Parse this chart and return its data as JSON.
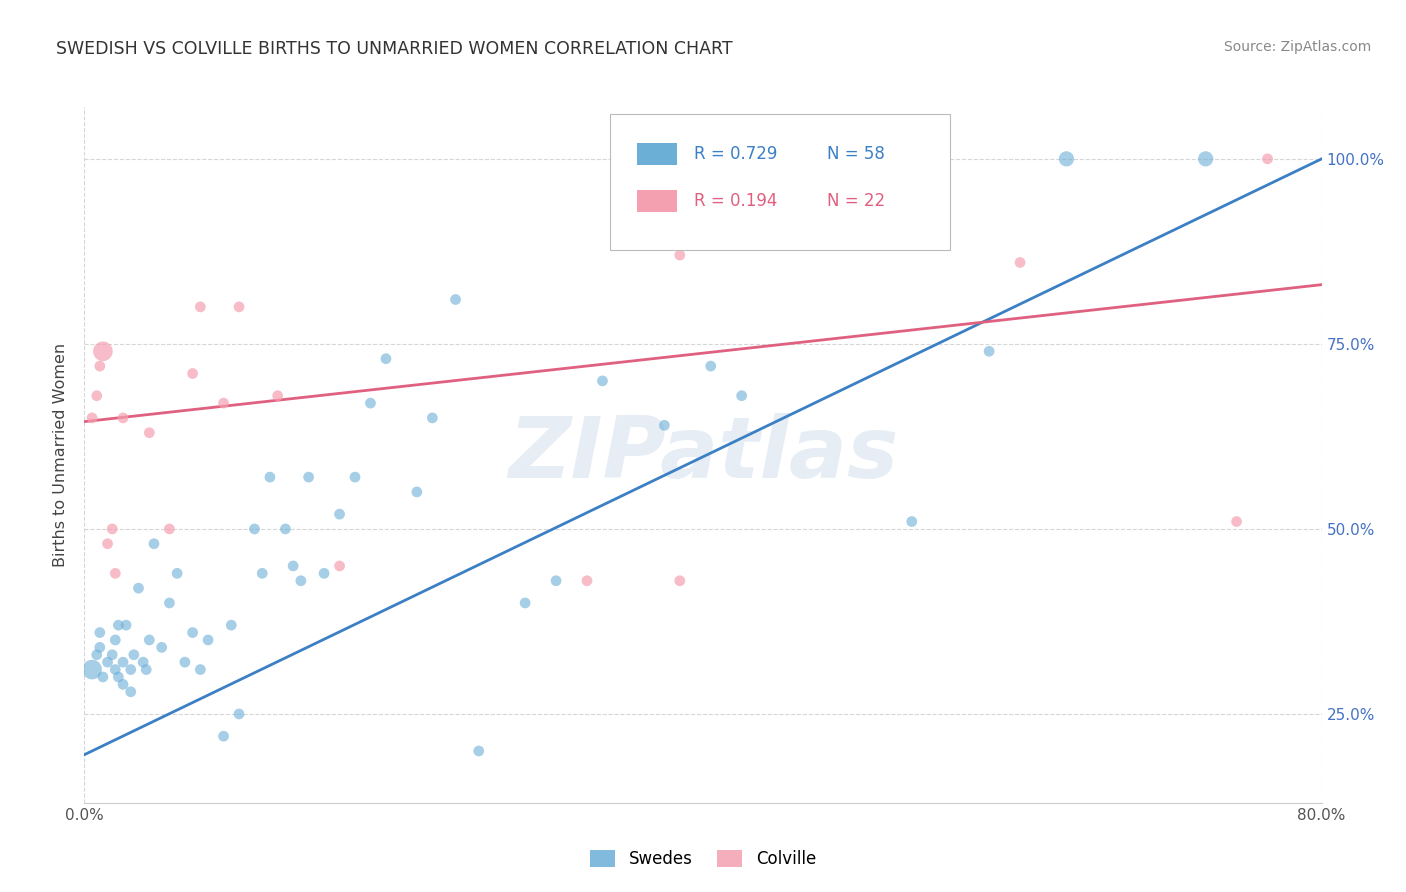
{
  "title": "SWEDISH VS COLVILLE BIRTHS TO UNMARRIED WOMEN CORRELATION CHART",
  "source": "Source: ZipAtlas.com",
  "ylabel": "Births to Unmarried Women",
  "watermark": "ZIPatlas",
  "xlim": [
    0.0,
    0.8
  ],
  "ylim": [
    0.13,
    1.07
  ],
  "ytick_positions": [
    0.25,
    0.5,
    0.75,
    1.0
  ],
  "ytick_labels": [
    "25.0%",
    "50.0%",
    "75.0%",
    "100.0%"
  ],
  "legend1_label": "R = 0.729",
  "legend1_n": "N = 58",
  "legend2_label": "R = 0.194",
  "legend2_n": "N = 22",
  "swedes_color": "#6baed6",
  "colville_color": "#f4a0b0",
  "blue_line_color": "#3b7fc4",
  "pink_line_color": "#e06080",
  "swedes_data_x": [
    0.005,
    0.008,
    0.01,
    0.01,
    0.012,
    0.015,
    0.018,
    0.02,
    0.02,
    0.022,
    0.022,
    0.025,
    0.025,
    0.027,
    0.03,
    0.03,
    0.032,
    0.035,
    0.038,
    0.04,
    0.042,
    0.045,
    0.05,
    0.055,
    0.06,
    0.065,
    0.07,
    0.075,
    0.08,
    0.09,
    0.095,
    0.1,
    0.11,
    0.115,
    0.12,
    0.13,
    0.135,
    0.14,
    0.145,
    0.155,
    0.165,
    0.175,
    0.185,
    0.195,
    0.215,
    0.225,
    0.24,
    0.255,
    0.285,
    0.305,
    0.335,
    0.375,
    0.405,
    0.425,
    0.535,
    0.585,
    0.635,
    0.725
  ],
  "swedes_data_y": [
    0.31,
    0.33,
    0.34,
    0.36,
    0.3,
    0.32,
    0.33,
    0.31,
    0.35,
    0.3,
    0.37,
    0.29,
    0.32,
    0.37,
    0.28,
    0.31,
    0.33,
    0.42,
    0.32,
    0.31,
    0.35,
    0.48,
    0.34,
    0.4,
    0.44,
    0.32,
    0.36,
    0.31,
    0.35,
    0.22,
    0.37,
    0.25,
    0.5,
    0.44,
    0.57,
    0.5,
    0.45,
    0.43,
    0.57,
    0.44,
    0.52,
    0.57,
    0.67,
    0.73,
    0.55,
    0.65,
    0.81,
    0.2,
    0.4,
    0.43,
    0.7,
    0.64,
    0.72,
    0.68,
    0.51,
    0.74,
    1.0,
    1.0
  ],
  "swedes_sizes": [
    200,
    60,
    60,
    60,
    60,
    60,
    60,
    60,
    60,
    60,
    60,
    60,
    60,
    60,
    60,
    60,
    60,
    60,
    60,
    60,
    60,
    60,
    60,
    60,
    60,
    60,
    60,
    60,
    60,
    60,
    60,
    60,
    60,
    60,
    60,
    60,
    60,
    60,
    60,
    60,
    60,
    60,
    60,
    60,
    60,
    60,
    60,
    60,
    60,
    60,
    60,
    60,
    60,
    60,
    60,
    60,
    120,
    120
  ],
  "colville_data_x": [
    0.005,
    0.008,
    0.01,
    0.012,
    0.015,
    0.018,
    0.02,
    0.025,
    0.042,
    0.055,
    0.07,
    0.075,
    0.09,
    0.1,
    0.125,
    0.165,
    0.325,
    0.385,
    0.385,
    0.605,
    0.745,
    0.765
  ],
  "colville_data_y": [
    0.65,
    0.68,
    0.72,
    0.74,
    0.48,
    0.5,
    0.44,
    0.65,
    0.63,
    0.5,
    0.71,
    0.8,
    0.67,
    0.8,
    0.68,
    0.45,
    0.43,
    0.43,
    0.87,
    0.86,
    0.51,
    1.0
  ],
  "colville_sizes": [
    60,
    60,
    60,
    200,
    60,
    60,
    60,
    60,
    60,
    60,
    60,
    60,
    60,
    60,
    60,
    60,
    60,
    60,
    60,
    60,
    60,
    60
  ],
  "blue_line_x0": 0.0,
  "blue_line_x1": 0.8,
  "blue_line_y0": 0.195,
  "blue_line_y1": 1.0,
  "pink_line_x0": 0.0,
  "pink_line_x1": 0.8,
  "pink_line_y0": 0.645,
  "pink_line_y1": 0.83
}
